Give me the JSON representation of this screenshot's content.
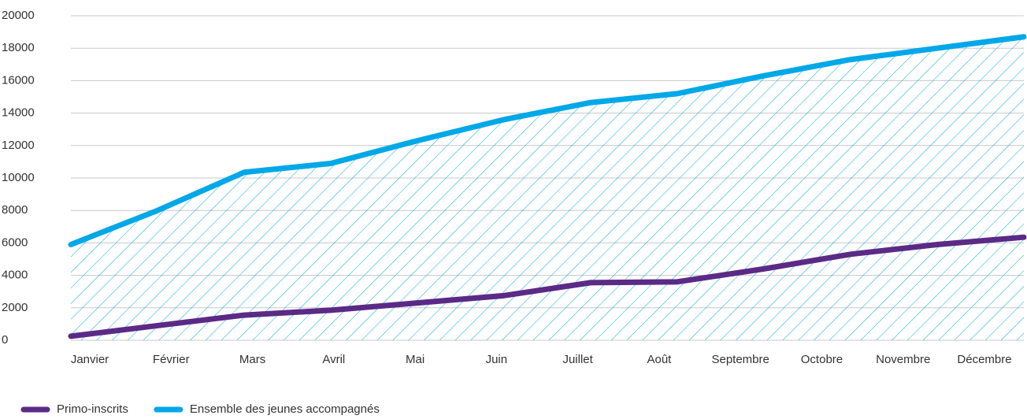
{
  "chart_data": {
    "type": "line",
    "categories": [
      "Janvier",
      "Février",
      "Mars",
      "Avril",
      "Mai",
      "Juin",
      "Juillet",
      "Août",
      "Septembre",
      "Octobre",
      "Novembre",
      "Décembre"
    ],
    "series": [
      {
        "name": "Primo-inscrits",
        "color": "#5b2a86",
        "values": [
          250,
          900,
          1550,
          1850,
          2300,
          2750,
          3550,
          3600,
          4400,
          5300,
          5900,
          6350
        ]
      },
      {
        "name": "Ensemble des jeunes accompagnés",
        "color": "#00a8e8",
        "values": [
          5900,
          8000,
          10350,
          10900,
          12300,
          13600,
          14650,
          15200,
          16300,
          17300,
          18000,
          18700
        ]
      }
    ],
    "ylim": [
      0,
      20000
    ],
    "yticks": [
      0,
      2000,
      4000,
      6000,
      8000,
      10000,
      12000,
      14000,
      16000,
      18000,
      20000
    ],
    "grid": true,
    "legend": "bottom"
  }
}
